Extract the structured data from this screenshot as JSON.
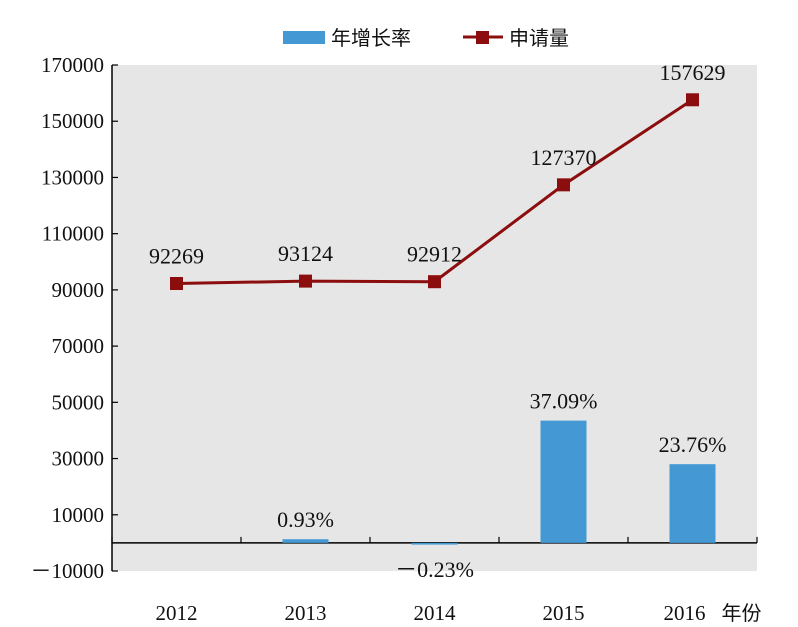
{
  "chart_data": {
    "type": "bar+line",
    "categories": [
      "2012",
      "2013",
      "2014",
      "2015",
      "2016"
    ],
    "x_suffix": "年份",
    "legend": {
      "bar_label": "年增长率",
      "line_label": "申请量",
      "placement": "top-center"
    },
    "ylim": [
      -10000,
      170000
    ],
    "yticks": [
      -10000,
      10000,
      30000,
      50000,
      70000,
      90000,
      110000,
      130000,
      150000,
      170000
    ],
    "ytick_labels": [
      "－10000",
      "10000",
      "30000",
      "50000",
      "70000",
      "90000",
      "110000",
      "130000",
      "150000",
      "170000"
    ],
    "grid": false,
    "series": [
      {
        "name": "年增长率",
        "kind": "bar",
        "color": "#4499d4",
        "values": [
          null,
          1300,
          -600,
          43500,
          28000
        ],
        "labels": [
          "",
          "0.93%",
          "－0.23%",
          "37.09%",
          "23.76%"
        ]
      },
      {
        "name": "申请量",
        "kind": "line",
        "color": "#8b0d0d",
        "values": [
          92269,
          93124,
          92912,
          127370,
          157629
        ],
        "labels": [
          "92269",
          "93124",
          "92912",
          "127370",
          "157629"
        ]
      }
    ],
    "plot_background": "#e6e6e6"
  }
}
